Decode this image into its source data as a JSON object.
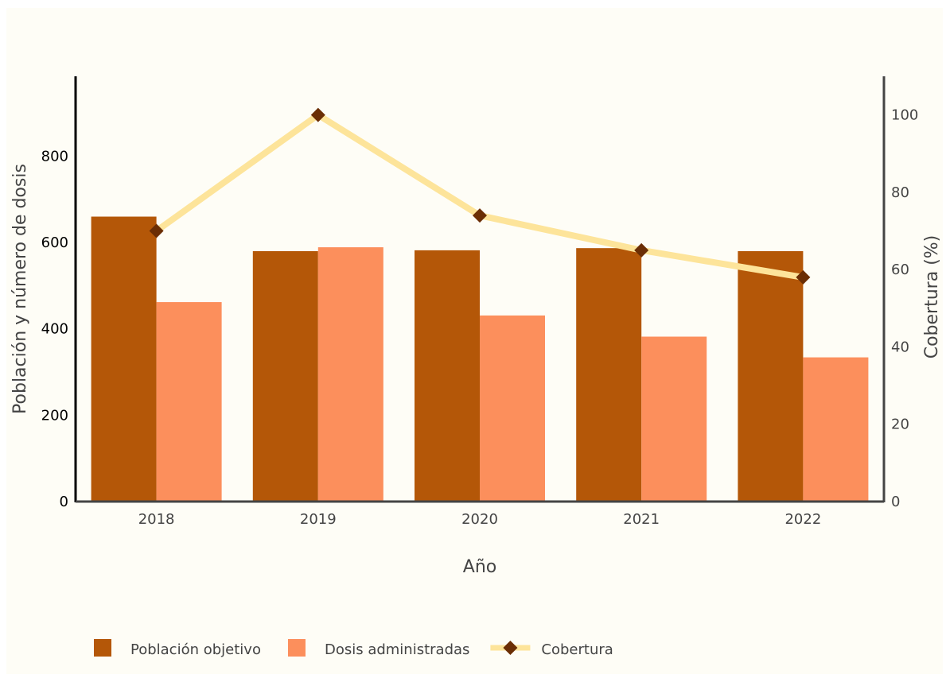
{
  "chart_data": {
    "type": "bar",
    "categories": [
      "2018",
      "2019",
      "2020",
      "2021",
      "2022"
    ],
    "series": [
      {
        "name": "Población objetivo",
        "kind": "bar",
        "axis": "left",
        "color": "#b45708",
        "values": [
          660,
          580,
          582,
          587,
          580
        ]
      },
      {
        "name": "Dosis administradas",
        "kind": "bar",
        "axis": "left",
        "color": "#fc8f5c",
        "values": [
          462,
          589,
          431,
          382,
          334
        ]
      },
      {
        "name": "Cobertura",
        "kind": "line",
        "axis": "right",
        "color": "#fde49a",
        "marker_color": "#6b2e05",
        "values": [
          70,
          100,
          74,
          65,
          58
        ]
      }
    ],
    "xlabel": "Año",
    "ylabel": "Población y número de dosis",
    "y2label": "Cobertura (%)",
    "ylim": [
      0,
      985
    ],
    "y2lim": [
      0,
      110
    ],
    "yticks": [
      0,
      200,
      400,
      600,
      800
    ],
    "y2ticks": [
      0,
      20,
      40,
      60,
      80,
      100
    ],
    "grid": false,
    "legend_position": "bottom-left"
  }
}
